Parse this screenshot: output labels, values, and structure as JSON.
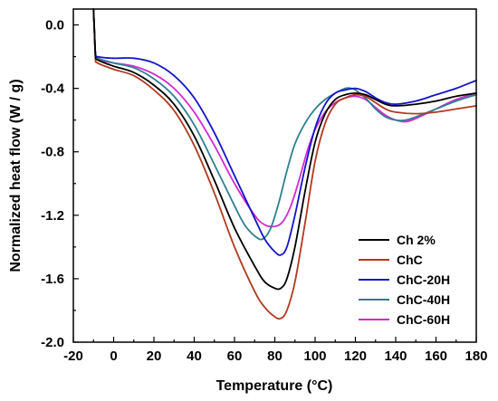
{
  "chart_data": {
    "type": "line",
    "title": "",
    "xlabel": "Temperature (°C)",
    "ylabel": "Normalized heat flow (W / g)",
    "xlim": [
      -20,
      180
    ],
    "ylim": [
      -2.0,
      0.1
    ],
    "x_ticks": [
      "-20",
      "0",
      "20",
      "40",
      "60",
      "80",
      "100",
      "120",
      "140",
      "160",
      "180"
    ],
    "y_ticks": [
      "0.0",
      "-0.4",
      "-0.8",
      "-1.2",
      "-1.6",
      "-2.0"
    ],
    "grid": false,
    "legend_position": "bottom-right",
    "series": [
      {
        "name": "Ch 2%",
        "color": "#000000",
        "points": [
          [
            -10,
            0.1
          ],
          [
            -9.5,
            -0.05
          ],
          [
            -9,
            -0.19
          ],
          [
            -8,
            -0.22
          ],
          [
            0,
            -0.26
          ],
          [
            10,
            -0.3
          ],
          [
            20,
            -0.38
          ],
          [
            30,
            -0.5
          ],
          [
            40,
            -0.7
          ],
          [
            50,
            -0.98
          ],
          [
            60,
            -1.28
          ],
          [
            70,
            -1.52
          ],
          [
            75,
            -1.62
          ],
          [
            80,
            -1.66
          ],
          [
            83,
            -1.66
          ],
          [
            86,
            -1.6
          ],
          [
            90,
            -1.4
          ],
          [
            95,
            -1.05
          ],
          [
            100,
            -0.74
          ],
          [
            105,
            -0.56
          ],
          [
            110,
            -0.47
          ],
          [
            115,
            -0.44
          ],
          [
            120,
            -0.43
          ],
          [
            125,
            -0.44
          ],
          [
            130,
            -0.47
          ],
          [
            135,
            -0.5
          ],
          [
            140,
            -0.51
          ],
          [
            150,
            -0.5
          ],
          [
            160,
            -0.48
          ],
          [
            170,
            -0.45
          ],
          [
            180,
            -0.43
          ]
        ]
      },
      {
        "name": "ChC",
        "color": "#b03a1e",
        "points": [
          [
            -10,
            0.1
          ],
          [
            -9.5,
            -0.05
          ],
          [
            -9,
            -0.21
          ],
          [
            -8,
            -0.24
          ],
          [
            0,
            -0.28
          ],
          [
            10,
            -0.32
          ],
          [
            20,
            -0.41
          ],
          [
            30,
            -0.54
          ],
          [
            40,
            -0.76
          ],
          [
            50,
            -1.06
          ],
          [
            60,
            -1.4
          ],
          [
            70,
            -1.68
          ],
          [
            75,
            -1.78
          ],
          [
            80,
            -1.84
          ],
          [
            83,
            -1.85
          ],
          [
            86,
            -1.8
          ],
          [
            90,
            -1.62
          ],
          [
            95,
            -1.25
          ],
          [
            100,
            -0.86
          ],
          [
            105,
            -0.62
          ],
          [
            110,
            -0.5
          ],
          [
            115,
            -0.46
          ],
          [
            120,
            -0.44
          ],
          [
            125,
            -0.45
          ],
          [
            130,
            -0.49
          ],
          [
            135,
            -0.53
          ],
          [
            140,
            -0.55
          ],
          [
            150,
            -0.56
          ],
          [
            160,
            -0.55
          ],
          [
            170,
            -0.53
          ],
          [
            180,
            -0.51
          ]
        ]
      },
      {
        "name": "ChC-20H",
        "color": "#1414c8",
        "points": [
          [
            -10,
            0.1
          ],
          [
            -9.5,
            -0.05
          ],
          [
            -9,
            -0.18
          ],
          [
            -8,
            -0.2
          ],
          [
            0,
            -0.21
          ],
          [
            10,
            -0.21
          ],
          [
            20,
            -0.24
          ],
          [
            30,
            -0.32
          ],
          [
            40,
            -0.46
          ],
          [
            50,
            -0.68
          ],
          [
            60,
            -0.95
          ],
          [
            70,
            -1.22
          ],
          [
            75,
            -1.35
          ],
          [
            80,
            -1.43
          ],
          [
            83,
            -1.45
          ],
          [
            86,
            -1.4
          ],
          [
            90,
            -1.2
          ],
          [
            95,
            -0.9
          ],
          [
            100,
            -0.65
          ],
          [
            105,
            -0.5
          ],
          [
            110,
            -0.43
          ],
          [
            115,
            -0.41
          ],
          [
            120,
            -0.4
          ],
          [
            125,
            -0.42
          ],
          [
            130,
            -0.46
          ],
          [
            135,
            -0.49
          ],
          [
            140,
            -0.5
          ],
          [
            150,
            -0.48
          ],
          [
            160,
            -0.44
          ],
          [
            170,
            -0.4
          ],
          [
            180,
            -0.35
          ]
        ]
      },
      {
        "name": "ChC-40H",
        "color": "#2f7f8f",
        "points": [
          [
            -10,
            0.1
          ],
          [
            -9.5,
            -0.05
          ],
          [
            -9,
            -0.19
          ],
          [
            -8,
            -0.21
          ],
          [
            0,
            -0.24
          ],
          [
            10,
            -0.27
          ],
          [
            20,
            -0.34
          ],
          [
            30,
            -0.45
          ],
          [
            40,
            -0.63
          ],
          [
            50,
            -0.88
          ],
          [
            60,
            -1.14
          ],
          [
            65,
            -1.26
          ],
          [
            70,
            -1.33
          ],
          [
            74,
            -1.35
          ],
          [
            78,
            -1.28
          ],
          [
            82,
            -1.12
          ],
          [
            86,
            -0.92
          ],
          [
            90,
            -0.75
          ],
          [
            95,
            -0.62
          ],
          [
            100,
            -0.53
          ],
          [
            105,
            -0.47
          ],
          [
            110,
            -0.43
          ],
          [
            115,
            -0.4
          ],
          [
            118,
            -0.4
          ],
          [
            120,
            -0.41
          ],
          [
            125,
            -0.46
          ],
          [
            130,
            -0.53
          ],
          [
            135,
            -0.58
          ],
          [
            140,
            -0.6
          ],
          [
            145,
            -0.6
          ],
          [
            150,
            -0.58
          ],
          [
            160,
            -0.53
          ],
          [
            170,
            -0.48
          ],
          [
            180,
            -0.44
          ]
        ]
      },
      {
        "name": "ChC-60H",
        "color": "#d22ad2",
        "points": [
          [
            -10,
            0.1
          ],
          [
            -9.5,
            -0.05
          ],
          [
            -9,
            -0.2
          ],
          [
            -8,
            -0.22
          ],
          [
            0,
            -0.24
          ],
          [
            10,
            -0.26
          ],
          [
            20,
            -0.31
          ],
          [
            30,
            -0.4
          ],
          [
            40,
            -0.55
          ],
          [
            50,
            -0.76
          ],
          [
            60,
            -1.0
          ],
          [
            70,
            -1.2
          ],
          [
            75,
            -1.26
          ],
          [
            80,
            -1.27
          ],
          [
            84,
            -1.24
          ],
          [
            88,
            -1.14
          ],
          [
            92,
            -0.98
          ],
          [
            96,
            -0.8
          ],
          [
            100,
            -0.66
          ],
          [
            105,
            -0.55
          ],
          [
            110,
            -0.49
          ],
          [
            115,
            -0.46
          ],
          [
            120,
            -0.45
          ],
          [
            125,
            -0.47
          ],
          [
            130,
            -0.52
          ],
          [
            135,
            -0.57
          ],
          [
            140,
            -0.6
          ],
          [
            145,
            -0.61
          ],
          [
            150,
            -0.59
          ],
          [
            160,
            -0.53
          ],
          [
            170,
            -0.47
          ],
          [
            180,
            -0.43
          ]
        ]
      }
    ]
  }
}
